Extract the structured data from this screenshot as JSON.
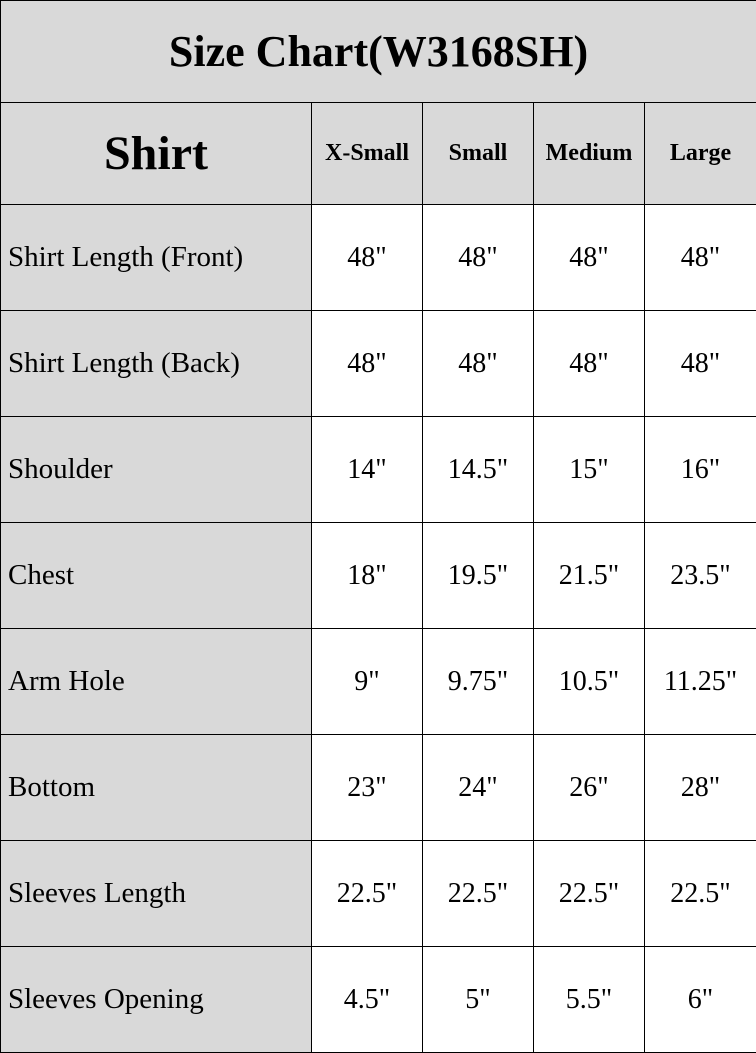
{
  "title": "Size Chart(W3168SH)",
  "header": {
    "main": "Shirt",
    "sizes": [
      "X-Small",
      "Small",
      "Medium",
      "Large"
    ]
  },
  "rows": [
    {
      "label": "Shirt Length (Front)",
      "values": [
        "48\"",
        "48\"",
        "48\"",
        "48\""
      ]
    },
    {
      "label": "Shirt Length (Back)",
      "values": [
        "48\"",
        "48\"",
        "48\"",
        "48\""
      ]
    },
    {
      "label": "Shoulder",
      "values": [
        "14\"",
        "14.5\"",
        "15\"",
        "16\""
      ]
    },
    {
      "label": "Chest",
      "values": [
        "18\"",
        "19.5\"",
        "21.5\"",
        "23.5\""
      ]
    },
    {
      "label": "Arm Hole",
      "values": [
        "9\"",
        "9.75\"",
        "10.5\"",
        "11.25\""
      ]
    },
    {
      "label": "Bottom",
      "values": [
        "23\"",
        "24\"",
        "26\"",
        "28\""
      ]
    },
    {
      "label": "Sleeves Length",
      "values": [
        "22.5\"",
        "22.5\"",
        "22.5\"",
        "22.5\""
      ]
    },
    {
      "label": "Sleeves Opening",
      "values": [
        "4.5\"",
        "5\"",
        "5.5\"",
        "6\""
      ]
    }
  ],
  "colors": {
    "header_bg": "#d9d9d9",
    "cell_bg": "#ffffff",
    "border": "#000000"
  }
}
